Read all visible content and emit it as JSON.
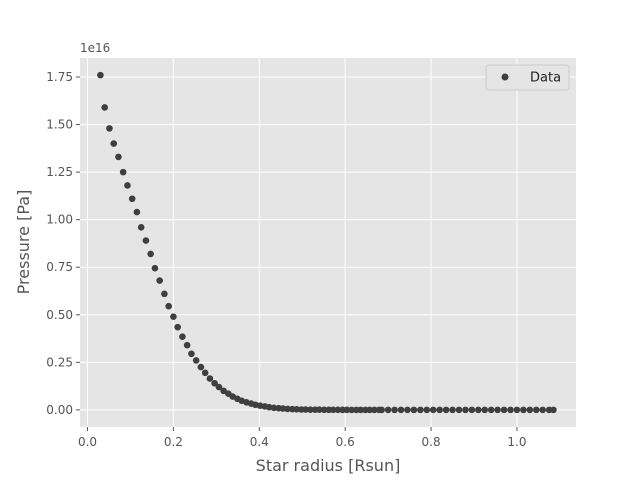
{
  "chart_data": {
    "type": "scatter",
    "title": "",
    "xlabel": "Star radius [Rsun]",
    "ylabel": "Pressure [Pa]",
    "y_scale_label": "1e16",
    "xlim": [
      -0.0175,
      1.1375
    ],
    "ylim": [
      -0.09,
      1.85
    ],
    "xticks": [
      0.0,
      0.2,
      0.4,
      0.6,
      0.8,
      1.0
    ],
    "xtick_labels": [
      "0.0",
      "0.2",
      "0.4",
      "0.6",
      "0.8",
      "1.0"
    ],
    "yticks": [
      0.0,
      0.25,
      0.5,
      0.75,
      1.0,
      1.25,
      1.5,
      1.75
    ],
    "ytick_labels": [
      "0.00",
      "0.25",
      "0.50",
      "0.75",
      "1.00",
      "1.25",
      "1.50",
      "1.75"
    ],
    "grid": true,
    "legend_position": "top-right",
    "colors": {
      "background": "#e5e5e5",
      "marker": "#3f3f3f",
      "grid": "#ffffff",
      "text": "#555555"
    },
    "series": [
      {
        "name": "Data",
        "x": [
          0.03,
          0.04,
          0.051,
          0.061,
          0.072,
          0.083,
          0.093,
          0.104,
          0.115,
          0.125,
          0.136,
          0.147,
          0.157,
          0.168,
          0.179,
          0.189,
          0.2,
          0.21,
          0.221,
          0.232,
          0.242,
          0.253,
          0.264,
          0.274,
          0.285,
          0.296,
          0.306,
          0.317,
          0.328,
          0.338,
          0.349,
          0.359,
          0.37,
          0.381,
          0.391,
          0.402,
          0.413,
          0.423,
          0.434,
          0.445,
          0.455,
          0.466,
          0.477,
          0.487,
          0.498,
          0.508,
          0.519,
          0.53,
          0.54,
          0.551,
          0.562,
          0.572,
          0.583,
          0.594,
          0.604,
          0.615,
          0.626,
          0.636,
          0.647,
          0.657,
          0.668,
          0.679,
          0.685,
          0.7,
          0.715,
          0.73,
          0.745,
          0.76,
          0.775,
          0.79,
          0.805,
          0.82,
          0.835,
          0.85,
          0.865,
          0.88,
          0.895,
          0.91,
          0.925,
          0.94,
          0.955,
          0.97,
          0.985,
          1.0,
          1.015,
          1.03,
          1.045,
          1.06,
          1.075,
          1.085
        ],
        "y": [
          1.76,
          1.59,
          1.48,
          1.4,
          1.33,
          1.25,
          1.18,
          1.11,
          1.04,
          0.96,
          0.89,
          0.82,
          0.745,
          0.68,
          0.61,
          0.545,
          0.49,
          0.435,
          0.385,
          0.34,
          0.295,
          0.26,
          0.225,
          0.195,
          0.165,
          0.14,
          0.12,
          0.1,
          0.085,
          0.07,
          0.058,
          0.048,
          0.04,
          0.033,
          0.027,
          0.022,
          0.018,
          0.014,
          0.011,
          0.009,
          0.007,
          0.005,
          0.004,
          0.003,
          0.002,
          0.002,
          0.001,
          0.001,
          0.001,
          0.0005,
          0.0004,
          0.0003,
          0.0002,
          0.0001,
          0.0001,
          0.0,
          0.0,
          0.0,
          0.0,
          0.0,
          0.0,
          0.0,
          0.0,
          0.0,
          0.0,
          0.0,
          0.0,
          0.0,
          0.0,
          0.0,
          0.0,
          0.0,
          0.0,
          0.0,
          0.0,
          0.0,
          0.0,
          0.0,
          0.0,
          0.0,
          0.0,
          0.0,
          0.0,
          0.0,
          0.0,
          0.0,
          0.0,
          0.0,
          0.0,
          0.0
        ]
      }
    ]
  }
}
